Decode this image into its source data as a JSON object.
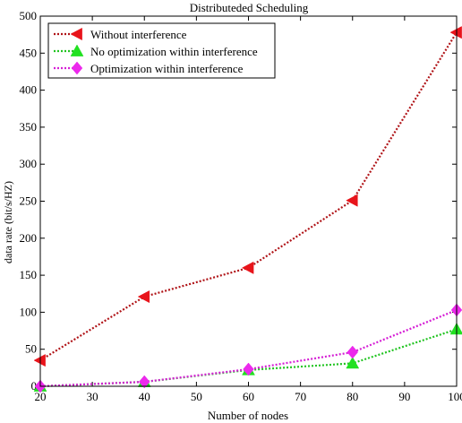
{
  "chart_data": {
    "type": "line",
    "title": "Distributeded Scheduling",
    "xlabel": "Number of nodes",
    "ylabel": "data rate (bit/s/HZ)",
    "x": [
      20,
      40,
      60,
      80,
      100
    ],
    "xlim": [
      20,
      100
    ],
    "ylim": [
      0,
      500
    ],
    "xticks": [
      20,
      30,
      40,
      50,
      60,
      70,
      80,
      90,
      100
    ],
    "yticks": [
      0,
      50,
      100,
      150,
      200,
      250,
      300,
      350,
      400,
      450,
      500
    ],
    "grid": false,
    "legend_position": "top-left",
    "series": [
      {
        "name": "Without interference",
        "values": [
          35,
          121,
          160,
          251,
          478
        ],
        "color": "#e8141b",
        "line_color": "#b01418",
        "marker": "triangle-left"
      },
      {
        "name": "No optimization within interference",
        "values": [
          0,
          6,
          22,
          31,
          77
        ],
        "color": "#21e121",
        "line_color": "#21c421",
        "marker": "triangle-up"
      },
      {
        "name": "Optimization within interference",
        "values": [
          0,
          6,
          23,
          46,
          103
        ],
        "color": "#ec29ec",
        "line_color": "#d51fd5",
        "marker": "diamond"
      }
    ]
  }
}
